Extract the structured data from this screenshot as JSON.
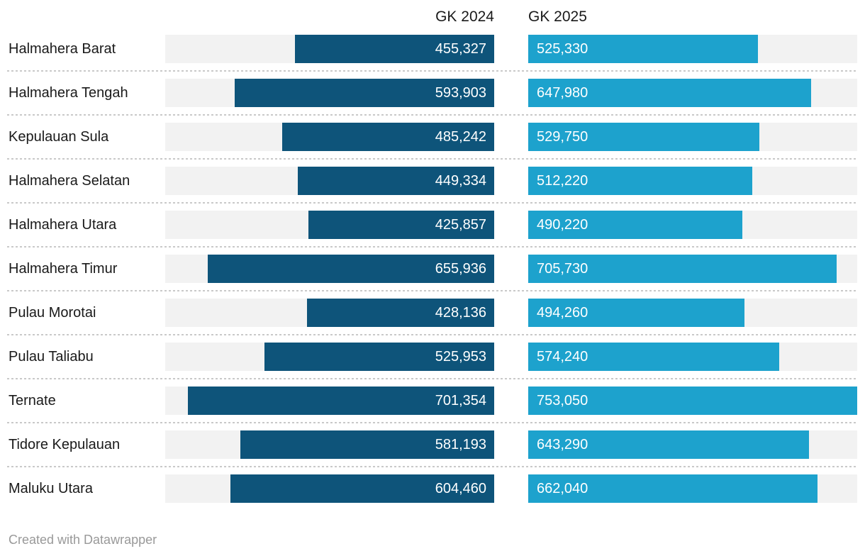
{
  "chart_data": {
    "type": "bar",
    "orientation": "horizontal",
    "categories": [
      "Halmahera Barat",
      "Halmahera Tengah",
      "Kepulauan Sula",
      "Halmahera Selatan",
      "Halmahera Utara",
      "Halmahera Timur",
      "Pulau Morotai",
      "Pulau Taliabu",
      "Ternate",
      "Tidore Kepulauan",
      "Maluku Utara"
    ],
    "series": [
      {
        "name": "GK 2024",
        "color": "#0e547a",
        "values": [
          455327,
          593903,
          485242,
          449334,
          425857,
          655936,
          428136,
          525953,
          701354,
          581193,
          604460
        ]
      },
      {
        "name": "GK 2025",
        "color": "#1da2cd",
        "values": [
          525330,
          647980,
          529750,
          512220,
          490220,
          705730,
          494260,
          574240,
          753050,
          643290,
          662040
        ]
      }
    ],
    "xlim": [
      0,
      753050
    ],
    "grid": false,
    "value_labels": "inside-bars",
    "legend_position": "column-headers",
    "title": ""
  },
  "header": {
    "col1": "GK 2024",
    "col2": "GK 2025"
  },
  "footer": {
    "credit": "Created with Datawrapper"
  },
  "colors": {
    "bar_2024": "#0e547a",
    "bar_2025": "#1da2cd",
    "track": "#f2f2f2",
    "separator": "#c9c9c9",
    "label_text": "#1a1a1a",
    "bar_value_text": "#ffffff",
    "footer_text": "#999999",
    "background": "#ffffff"
  }
}
